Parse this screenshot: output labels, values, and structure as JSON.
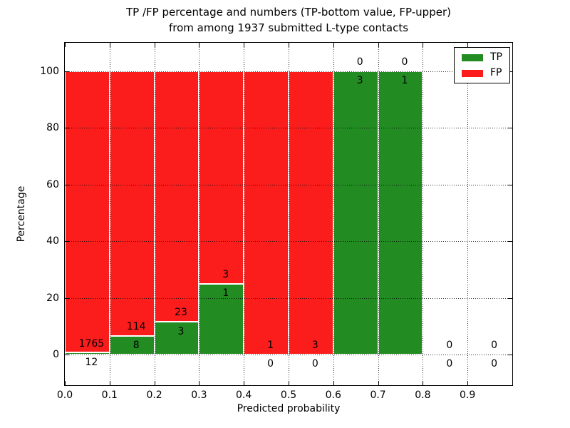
{
  "chart_data": {
    "type": "bar",
    "stacked": true,
    "title": "TP /FP percentage and numbers (TP-bottom value, FP-upper)\nfrom among 1937 submitted L-type contacts",
    "title_lines": [
      "TP /FP percentage and numbers (TP-bottom value, FP-upper)",
      "from among 1937 submitted L-type contacts"
    ],
    "xlabel": "Predicted probability",
    "ylabel": "Percentage",
    "x_tick_labels": [
      "0.0",
      "0.1",
      "0.2",
      "0.3",
      "0.4",
      "0.5",
      "0.6",
      "0.7",
      "0.8",
      "0.9"
    ],
    "y_ticks": [
      0,
      20,
      40,
      60,
      80,
      100
    ],
    "xlim": [
      0.0,
      1.0
    ],
    "ylim": [
      -11,
      110
    ],
    "grid": "dotted",
    "legend_position": "upper right",
    "series": [
      {
        "name": "TP",
        "color": "#228b22"
      },
      {
        "name": "FP",
        "color": "#fb1c1c"
      }
    ],
    "bins": [
      {
        "range": [
          0.0,
          0.1
        ],
        "tp": 12,
        "fp": 1765,
        "tp_pct": 0.68
      },
      {
        "range": [
          0.1,
          0.2
        ],
        "tp": 8,
        "fp": 114,
        "tp_pct": 6.56
      },
      {
        "range": [
          0.2,
          0.3
        ],
        "tp": 3,
        "fp": 23,
        "tp_pct": 11.54
      },
      {
        "range": [
          0.3,
          0.4
        ],
        "tp": 1,
        "fp": 3,
        "tp_pct": 25.0
      },
      {
        "range": [
          0.4,
          0.5
        ],
        "tp": 0,
        "fp": 1,
        "tp_pct": 0.0
      },
      {
        "range": [
          0.5,
          0.6
        ],
        "tp": 0,
        "fp": 3,
        "tp_pct": 0.0
      },
      {
        "range": [
          0.6,
          0.7
        ],
        "tp": 3,
        "fp": 0,
        "tp_pct": 100.0
      },
      {
        "range": [
          0.7,
          0.8
        ],
        "tp": 1,
        "fp": 0,
        "tp_pct": 100.0
      },
      {
        "range": [
          0.8,
          0.9
        ],
        "tp": 0,
        "fp": 0,
        "tp_pct": null
      },
      {
        "range": [
          0.9,
          1.0
        ],
        "tp": 0,
        "fp": 0,
        "tp_pct": null
      }
    ],
    "total_label": "1937"
  }
}
